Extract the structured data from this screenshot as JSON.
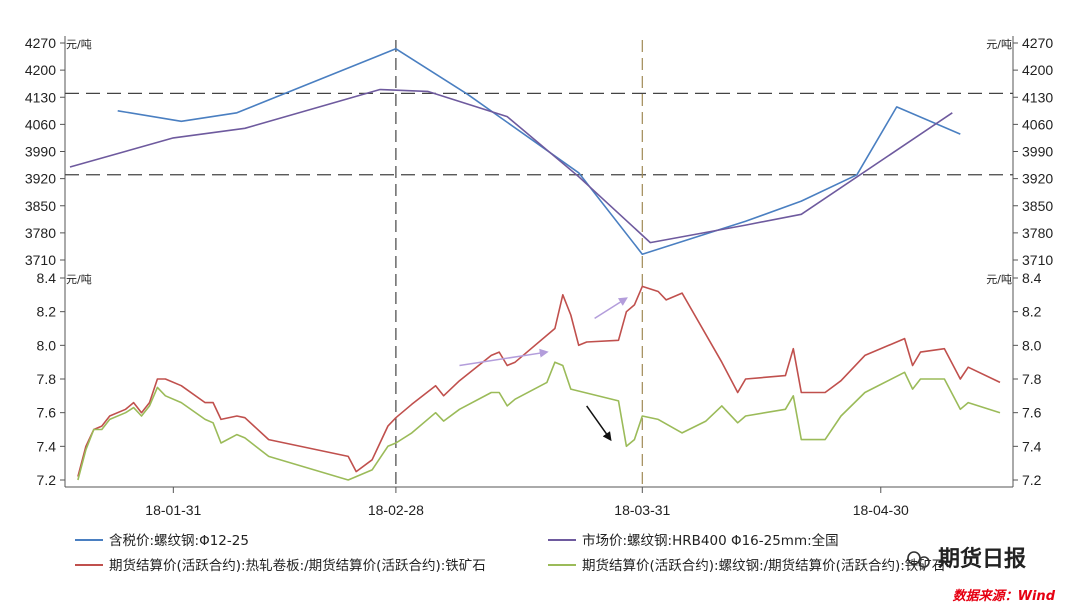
{
  "chart_data": [
    {
      "type": "line",
      "unit_left": "元/吨",
      "unit_right": "元/吨",
      "ylim": [
        3710,
        4270
      ],
      "yticks": [
        3710,
        3780,
        3850,
        3920,
        3990,
        4060,
        4130,
        4200,
        4270
      ],
      "reference_lines": [
        4140,
        3930
      ],
      "series": [
        {
          "name": "含税价:螺纹钢:Φ12-25",
          "color": "#4a7fc1",
          "points": [
            [
              "2018-01-24",
              4095
            ],
            [
              "2018-02-01",
              4068
            ],
            [
              "2018-02-08",
              4090
            ],
            [
              "2018-02-28",
              4255
            ],
            [
              "2018-03-09",
              4138
            ],
            [
              "2018-03-23",
              3935
            ],
            [
              "2018-03-31",
              3725
            ],
            [
              "2018-04-13",
              3810
            ],
            [
              "2018-04-20",
              3862
            ],
            [
              "2018-04-27",
              3930
            ],
            [
              "2018-05-02",
              4105
            ],
            [
              "2018-05-10",
              4035
            ]
          ]
        },
        {
          "name": "市场价:螺纹钢:HRB400 Φ16-25mm:全国",
          "color": "#6e5a9e",
          "points": [
            [
              "2018-01-18",
              3950
            ],
            [
              "2018-01-31",
              4025
            ],
            [
              "2018-02-09",
              4050
            ],
            [
              "2018-02-26",
              4150
            ],
            [
              "2018-03-04",
              4145
            ],
            [
              "2018-03-14",
              4080
            ],
            [
              "2018-03-23",
              3925
            ],
            [
              "2018-04-01",
              3755
            ],
            [
              "2018-04-13",
              3800
            ],
            [
              "2018-04-20",
              3828
            ],
            [
              "2018-05-09",
              4090
            ]
          ]
        }
      ]
    },
    {
      "type": "line",
      "unit_left": "元/吨",
      "unit_right": "元/吨",
      "ylim": [
        7.2,
        8.4
      ],
      "yticks": [
        7.2,
        7.4,
        7.6,
        7.8,
        8.0,
        8.2,
        8.4
      ],
      "x_start": "2018-01-18",
      "x_end": "2018-05-15",
      "x_ticks": [
        "18-01-31",
        "18-02-28",
        "18-03-31",
        "18-04-30"
      ],
      "x_tick_dates": [
        "2018-01-31",
        "2018-02-28",
        "2018-03-31",
        "2018-04-30"
      ],
      "markers": [
        "2018-02-28",
        "2018-03-31"
      ],
      "series": [
        {
          "name": "期货结算价(活跃合约):热轧卷板:/期货结算价(活跃合约):铁矿石",
          "color": "#c0504d",
          "points": [
            [
              "2018-01-19",
              7.22
            ],
            [
              "2018-01-20",
              7.4
            ],
            [
              "2018-01-21",
              7.5
            ],
            [
              "2018-01-22",
              7.52
            ],
            [
              "2018-01-23",
              7.58
            ],
            [
              "2018-01-25",
              7.62
            ],
            [
              "2018-01-26",
              7.66
            ],
            [
              "2018-01-27",
              7.6
            ],
            [
              "2018-01-28",
              7.66
            ],
            [
              "2018-01-29",
              7.8
            ],
            [
              "2018-01-30",
              7.8
            ],
            [
              "2018-02-01",
              7.76
            ],
            [
              "2018-02-04",
              7.66
            ],
            [
              "2018-02-05",
              7.66
            ],
            [
              "2018-02-06",
              7.56
            ],
            [
              "2018-02-08",
              7.58
            ],
            [
              "2018-02-09",
              7.57
            ],
            [
              "2018-02-12",
              7.44
            ],
            [
              "2018-02-22",
              7.34
            ],
            [
              "2018-02-23",
              7.25
            ],
            [
              "2018-02-25",
              7.32
            ],
            [
              "2018-02-27",
              7.52
            ],
            [
              "2018-02-28",
              7.57
            ],
            [
              "2018-03-02",
              7.65
            ],
            [
              "2018-03-05",
              7.76
            ],
            [
              "2018-03-06",
              7.7
            ],
            [
              "2018-03-08",
              7.79
            ],
            [
              "2018-03-12",
              7.94
            ],
            [
              "2018-03-13",
              7.96
            ],
            [
              "2018-03-14",
              7.88
            ],
            [
              "2018-03-15",
              7.9
            ],
            [
              "2018-03-20",
              8.1
            ],
            [
              "2018-03-21",
              8.3
            ],
            [
              "2018-03-22",
              8.18
            ],
            [
              "2018-03-23",
              8.0
            ],
            [
              "2018-03-24",
              8.02
            ],
            [
              "2018-03-28",
              8.03
            ],
            [
              "2018-03-29",
              8.2
            ],
            [
              "2018-03-30",
              8.24
            ],
            [
              "2018-03-31",
              8.35
            ],
            [
              "2018-04-02",
              8.32
            ],
            [
              "2018-04-03",
              8.27
            ],
            [
              "2018-04-05",
              8.31
            ],
            [
              "2018-04-10",
              7.9
            ],
            [
              "2018-04-12",
              7.72
            ],
            [
              "2018-04-13",
              7.8
            ],
            [
              "2018-04-18",
              7.82
            ],
            [
              "2018-04-19",
              7.98
            ],
            [
              "2018-04-20",
              7.72
            ],
            [
              "2018-04-23",
              7.72
            ],
            [
              "2018-04-25",
              7.79
            ],
            [
              "2018-04-28",
              7.94
            ],
            [
              "2018-05-03",
              8.04
            ],
            [
              "2018-05-04",
              7.88
            ],
            [
              "2018-05-05",
              7.96
            ],
            [
              "2018-05-08",
              7.98
            ],
            [
              "2018-05-10",
              7.8
            ],
            [
              "2018-05-11",
              7.87
            ],
            [
              "2018-05-15",
              7.78
            ]
          ]
        },
        {
          "name": "期货结算价(活跃合约):螺纹钢:/期货结算价(活跃合约):铁矿石",
          "color": "#9bbb59",
          "points": [
            [
              "2018-01-19",
              7.2
            ],
            [
              "2018-01-20",
              7.38
            ],
            [
              "2018-01-21",
              7.5
            ],
            [
              "2018-01-22",
              7.5
            ],
            [
              "2018-01-23",
              7.56
            ],
            [
              "2018-01-25",
              7.6
            ],
            [
              "2018-01-26",
              7.63
            ],
            [
              "2018-01-27",
              7.58
            ],
            [
              "2018-01-28",
              7.64
            ],
            [
              "2018-01-29",
              7.75
            ],
            [
              "2018-01-30",
              7.7
            ],
            [
              "2018-02-01",
              7.66
            ],
            [
              "2018-02-04",
              7.56
            ],
            [
              "2018-02-05",
              7.54
            ],
            [
              "2018-02-06",
              7.42
            ],
            [
              "2018-02-08",
              7.47
            ],
            [
              "2018-02-09",
              7.45
            ],
            [
              "2018-02-12",
              7.34
            ],
            [
              "2018-02-22",
              7.2
            ],
            [
              "2018-02-25",
              7.26
            ],
            [
              "2018-02-27",
              7.4
            ],
            [
              "2018-02-28",
              7.42
            ],
            [
              "2018-03-02",
              7.48
            ],
            [
              "2018-03-05",
              7.6
            ],
            [
              "2018-03-06",
              7.55
            ],
            [
              "2018-03-08",
              7.62
            ],
            [
              "2018-03-12",
              7.72
            ],
            [
              "2018-03-13",
              7.72
            ],
            [
              "2018-03-14",
              7.64
            ],
            [
              "2018-03-15",
              7.68
            ],
            [
              "2018-03-19",
              7.78
            ],
            [
              "2018-03-20",
              7.9
            ],
            [
              "2018-03-21",
              7.88
            ],
            [
              "2018-03-22",
              7.74
            ],
            [
              "2018-03-28",
              7.67
            ],
            [
              "2018-03-29",
              7.4
            ],
            [
              "2018-03-30",
              7.44
            ],
            [
              "2018-03-31",
              7.58
            ],
            [
              "2018-04-02",
              7.56
            ],
            [
              "2018-04-05",
              7.48
            ],
            [
              "2018-04-08",
              7.55
            ],
            [
              "2018-04-10",
              7.64
            ],
            [
              "2018-04-12",
              7.54
            ],
            [
              "2018-04-13",
              7.58
            ],
            [
              "2018-04-18",
              7.62
            ],
            [
              "2018-04-19",
              7.7
            ],
            [
              "2018-04-20",
              7.44
            ],
            [
              "2018-04-23",
              7.44
            ],
            [
              "2018-04-25",
              7.58
            ],
            [
              "2018-04-28",
              7.72
            ],
            [
              "2018-05-03",
              7.84
            ],
            [
              "2018-05-04",
              7.74
            ],
            [
              "2018-05-05",
              7.8
            ],
            [
              "2018-05-08",
              7.8
            ],
            [
              "2018-05-10",
              7.62
            ],
            [
              "2018-05-11",
              7.66
            ],
            [
              "2018-05-15",
              7.6
            ]
          ]
        }
      ]
    }
  ],
  "legend": {
    "items": [
      "含税价:螺纹钢:Φ12-25",
      "市场价:螺纹钢:HRB400 Φ16-25mm:全国",
      "期货结算价(活跃合约):热轧卷板:/期货结算价(活跃合约):铁矿石",
      "期货结算价(活跃合约):螺纹钢:/期货结算价(活跃合约):铁矿石"
    ],
    "colors": [
      "#4a7fc1",
      "#6e5a9e",
      "#c0504d",
      "#9bbb59"
    ]
  },
  "watermark": "期货日报",
  "source": "数据来源：Wind",
  "annotation_arrows": [
    {
      "color": "#b39ddb",
      "points": [
        [
          "2018-03-08",
          7.88
        ],
        [
          "2018-03-19",
          7.96
        ]
      ]
    },
    {
      "color": "#b39ddb",
      "points": [
        [
          "2018-03-25",
          8.16
        ],
        [
          "2018-03-29",
          8.28
        ]
      ]
    },
    {
      "color": "#111111",
      "points": [
        [
          "2018-03-24",
          7.64
        ],
        [
          "2018-03-27",
          7.44
        ]
      ]
    }
  ]
}
